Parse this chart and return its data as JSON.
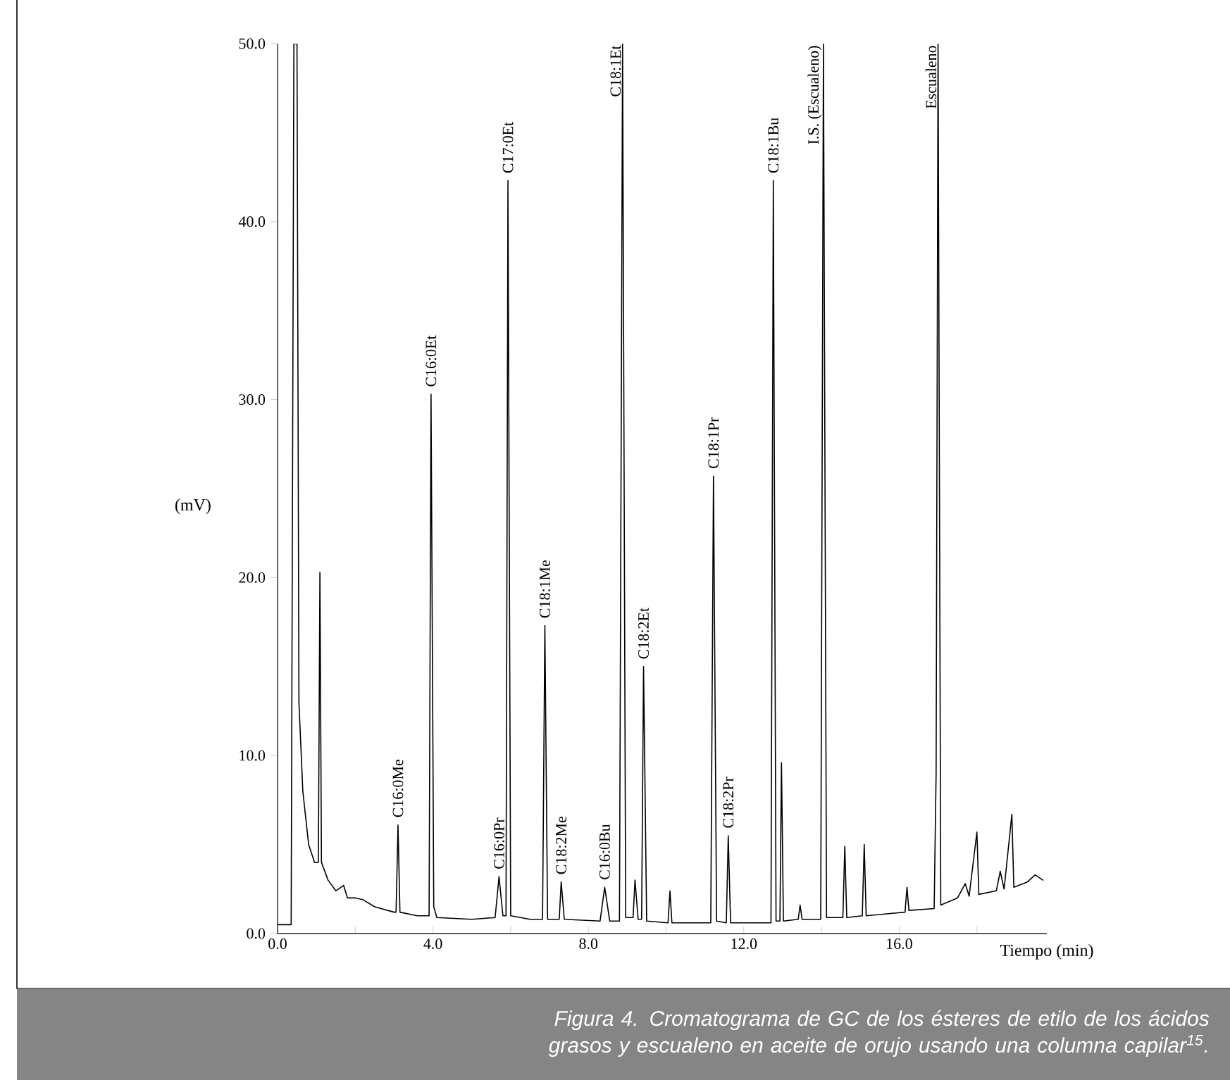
{
  "chart_data": {
    "type": "line",
    "xlabel": "Tiempo (min)",
    "ylabel": "(mV)",
    "xlim": [
      0,
      19.8
    ],
    "ylim": [
      0,
      50
    ],
    "xticks": [
      {
        "value": 0,
        "label": "0.0"
      },
      {
        "value": 2,
        "label": null
      },
      {
        "value": 4,
        "label": "4.0"
      },
      {
        "value": 6,
        "label": null
      },
      {
        "value": 8,
        "label": "8.0"
      },
      {
        "value": 10,
        "label": null
      },
      {
        "value": 12,
        "label": "12.0"
      },
      {
        "value": 14,
        "label": null
      },
      {
        "value": 16,
        "label": "16.0"
      },
      {
        "value": 18,
        "label": null
      }
    ],
    "yticks": [
      {
        "value": 0,
        "label": "0.0"
      },
      {
        "value": 10,
        "label": "10.0"
      },
      {
        "value": 20,
        "label": "20.0"
      },
      {
        "value": 30,
        "label": "30.0"
      },
      {
        "value": 40,
        "label": "40.0"
      },
      {
        "value": 50,
        "label": "50.0"
      }
    ],
    "marker": "none",
    "line_style": "solid",
    "grid": false,
    "series": [
      {
        "color": "#000000",
        "x": [
          0.0,
          0.35,
          0.42,
          0.5,
          0.55,
          0.65,
          0.8,
          0.95,
          1.05,
          1.09,
          1.13,
          1.3,
          1.5,
          1.7,
          1.8,
          2.0,
          2.2,
          2.5,
          3.0,
          3.05,
          3.1,
          3.15,
          3.6,
          3.9,
          3.95,
          4.02,
          4.1,
          5.0,
          5.6,
          5.7,
          5.8,
          5.88,
          5.93,
          6.0,
          6.5,
          6.82,
          6.88,
          6.95,
          7.25,
          7.3,
          7.38,
          8.3,
          8.42,
          8.55,
          8.8,
          8.88,
          8.96,
          9.15,
          9.2,
          9.28,
          9.37,
          9.42,
          9.5,
          10.05,
          10.1,
          10.15,
          11.15,
          11.22,
          11.3,
          11.55,
          11.6,
          11.66,
          12.7,
          12.76,
          12.83,
          12.93,
          12.97,
          13.02,
          13.4,
          13.45,
          13.5,
          13.98,
          14.05,
          14.13,
          14.55,
          14.6,
          14.65,
          15.05,
          15.1,
          15.15,
          16.15,
          16.2,
          16.25,
          16.9,
          16.95,
          17.0,
          17.07,
          17.5,
          17.7,
          17.8,
          18.0,
          18.05,
          18.5,
          18.6,
          18.7,
          18.9,
          18.95,
          19.3,
          19.5,
          19.7
        ],
        "values": [
          0.5,
          0.5,
          50,
          50,
          13,
          8,
          5,
          4,
          4,
          20.3,
          4,
          3,
          2.4,
          2.7,
          2.0,
          2.0,
          1.9,
          1.5,
          1.2,
          1.2,
          6.1,
          1.2,
          1.0,
          1.0,
          30.3,
          1.5,
          0.9,
          0.8,
          0.9,
          3.2,
          1.0,
          1.0,
          42.3,
          1.0,
          0.8,
          0.8,
          17.3,
          0.8,
          0.8,
          2.9,
          0.8,
          0.7,
          2.6,
          0.7,
          0.7,
          50,
          0.9,
          0.9,
          3.0,
          0.8,
          0.8,
          15.0,
          0.7,
          0.6,
          2.4,
          0.6,
          0.6,
          25.7,
          0.7,
          0.6,
          5.5,
          0.6,
          0.6,
          42.3,
          0.7,
          0.7,
          9.6,
          0.7,
          0.8,
          1.6,
          0.8,
          0.8,
          50,
          0.9,
          0.9,
          4.9,
          0.9,
          1.0,
          5.0,
          1.0,
          1.2,
          2.6,
          1.3,
          1.4,
          9.0,
          50,
          1.6,
          2.0,
          2.8,
          2.1,
          5.7,
          2.2,
          2.4,
          3.5,
          2.5,
          6.7,
          2.6,
          2.9,
          3.3,
          3.0
        ]
      }
    ],
    "annotations": [
      {
        "text": "C16:0Me",
        "x": 3.1,
        "y": 6.1
      },
      {
        "text": "C16:0Et",
        "x": 3.95,
        "y": 30.3
      },
      {
        "text": "C16:0Pr",
        "x": 5.7,
        "y": 3.2
      },
      {
        "text": "C17:0Et",
        "x": 5.93,
        "y": 42.3
      },
      {
        "text": "C18:1Me",
        "x": 6.88,
        "y": 17.3
      },
      {
        "text": "C18:2Me",
        "x": 7.3,
        "y": 2.9
      },
      {
        "text": "C16:0Bu",
        "x": 8.42,
        "y": 2.6
      },
      {
        "text": "C18:1Et",
        "x": 8.88,
        "y": 50
      },
      {
        "text": "C18:2Et",
        "x": 9.42,
        "y": 15.0
      },
      {
        "text": "C18:1Pr",
        "x": 11.22,
        "y": 25.7
      },
      {
        "text": "C18:2Pr",
        "x": 11.6,
        "y": 5.5
      },
      {
        "text": "C18:1Bu",
        "x": 12.76,
        "y": 42.3
      },
      {
        "text": "I.S. (Escualeno)",
        "x": 14.05,
        "y": 50
      },
      {
        "text": "Escualeno",
        "x": 17.0,
        "y": 50
      },
      "Figura 4. Cromatograma de GC de los ésteres de etilo de los ácidos grasos y escualeno en aceite de orujo usando una columna capilar$^{15}$."
    ]
  }
}
